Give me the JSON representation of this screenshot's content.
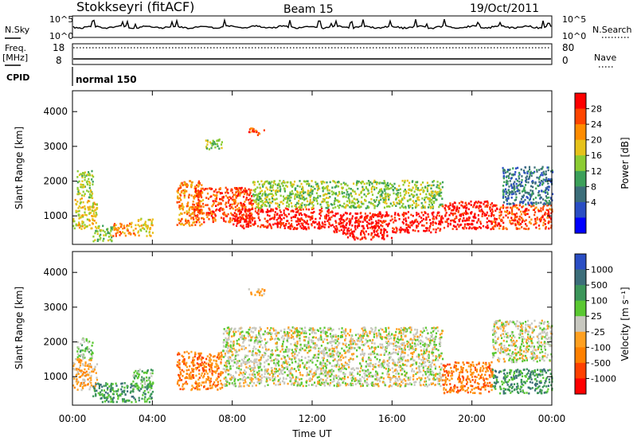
{
  "header": {
    "station": "Stokkseyri (fitACF)",
    "beam": "Beam 15",
    "date": "19/Oct/2011"
  },
  "ops_panels": {
    "nsky_label": "N.Sky",
    "nsearch_label": "N.Search",
    "nsky_ticks": [
      "10^5",
      "10^0"
    ],
    "nsearch_ticks": [
      "10^5",
      "10^0"
    ],
    "freq_label": "Freq.",
    "freq_unit": "[MHz]",
    "freq_ticks": [
      "18",
      "8"
    ],
    "nave_label": "Nave",
    "nave_ticks": [
      "80",
      "0"
    ],
    "cpid_label": "CPID",
    "cpid_value": "normal 150"
  },
  "chart_data": [
    {
      "type": "heatmap",
      "name": "power",
      "ylabel": "Slant Range [km]",
      "xlabel": "Time UT",
      "ylim": [
        180,
        4600
      ],
      "y_ticks": [
        1000,
        2000,
        3000,
        4000
      ],
      "x_ticks": [
        "00:00",
        "04:00",
        "08:00",
        "12:00",
        "16:00",
        "20:00",
        "00:00"
      ],
      "colorbar": {
        "label": "Power [dB]",
        "labels": [
          "28",
          "24",
          "20",
          "16",
          "12",
          "8",
          "4"
        ],
        "colors": [
          "#ff0000",
          "#ff4500",
          "#ff8c00",
          "#e6c21a",
          "#8ccc33",
          "#3ca05a",
          "#3c6e7a",
          "#2a4ec4",
          "#0000ff"
        ]
      },
      "bands": [
        {
          "t0": 0.0,
          "t1": 1.2,
          "r0": 600,
          "r1": 1500,
          "level": 3
        },
        {
          "t0": 0.2,
          "t1": 1.0,
          "r0": 1500,
          "r1": 2300,
          "level": 4
        },
        {
          "t0": 1.0,
          "t1": 2.0,
          "r0": 250,
          "r1": 700,
          "level": 4
        },
        {
          "t0": 2.0,
          "t1": 3.2,
          "r0": 400,
          "r1": 800,
          "level": 2
        },
        {
          "t0": 3.2,
          "t1": 4.0,
          "r0": 400,
          "r1": 900,
          "level": 3
        },
        {
          "t0": 5.2,
          "t1": 6.5,
          "r0": 700,
          "r1": 2000,
          "level": 2
        },
        {
          "t0": 6.0,
          "t1": 9.0,
          "r0": 800,
          "r1": 1800,
          "level": 1
        },
        {
          "t0": 8.0,
          "t1": 13.0,
          "r0": 600,
          "r1": 1200,
          "level": 0
        },
        {
          "t0": 9.0,
          "t1": 18.5,
          "r0": 1200,
          "r1": 2000,
          "level": 4
        },
        {
          "t0": 13.0,
          "t1": 18.5,
          "r0": 500,
          "r1": 1100,
          "level": 0
        },
        {
          "t0": 13.5,
          "t1": 16.0,
          "r0": 300,
          "r1": 500,
          "level": 0
        },
        {
          "t0": 18.5,
          "t1": 21.0,
          "r0": 600,
          "r1": 1400,
          "level": 0
        },
        {
          "t0": 21.0,
          "t1": 24.0,
          "r0": 600,
          "r1": 1300,
          "level": 1
        },
        {
          "t0": 21.5,
          "t1": 24.0,
          "r0": 1300,
          "r1": 2400,
          "level": 6
        },
        {
          "t0": 6.5,
          "t1": 7.5,
          "r0": 2900,
          "r1": 3200,
          "level": 4
        },
        {
          "t0": 8.8,
          "t1": 9.6,
          "r0": 3300,
          "r1": 3500,
          "level": 1
        }
      ]
    },
    {
      "type": "heatmap",
      "name": "velocity",
      "ylabel": "Slant Range [km]",
      "xlabel": "Time UT",
      "ylim": [
        180,
        4600
      ],
      "y_ticks": [
        1000,
        2000,
        3000,
        4000
      ],
      "x_ticks": [
        "00:00",
        "04:00",
        "08:00",
        "12:00",
        "16:00",
        "20:00",
        "00:00"
      ],
      "colorbar": {
        "label": "Velocity [m s⁻¹]",
        "labels": [
          "1000",
          "500",
          "100",
          "25",
          "-25",
          "-100",
          "-500",
          "-1000"
        ],
        "colors": [
          "#2a4ec4",
          "#3c6e7a",
          "#3c965a",
          "#5ac832",
          "#c8c8c0",
          "#ffa020",
          "#ff8000",
          "#ff4000",
          "#ff0000"
        ]
      },
      "bands": [
        {
          "t0": 0.0,
          "t1": 1.2,
          "r0": 600,
          "r1": 1500,
          "level": 5
        },
        {
          "t0": 0.2,
          "t1": 1.0,
          "r0": 1500,
          "r1": 2100,
          "level": 3
        },
        {
          "t0": 1.0,
          "t1": 4.0,
          "r0": 250,
          "r1": 800,
          "level": 2
        },
        {
          "t0": 3.0,
          "t1": 4.0,
          "r0": 600,
          "r1": 1200,
          "level": 3
        },
        {
          "t0": 5.2,
          "t1": 7.5,
          "r0": 600,
          "r1": 1700,
          "level": 6
        },
        {
          "t0": 7.5,
          "t1": 18.5,
          "r0": 700,
          "r1": 2400,
          "level": 4
        },
        {
          "t0": 18.5,
          "t1": 21.0,
          "r0": 500,
          "r1": 1400,
          "level": 6
        },
        {
          "t0": 21.0,
          "t1": 24.0,
          "r0": 500,
          "r1": 1200,
          "level": 2
        },
        {
          "t0": 21.0,
          "t1": 24.0,
          "r0": 1400,
          "r1": 2600,
          "level": 4
        },
        {
          "t0": 8.8,
          "t1": 9.6,
          "r0": 3300,
          "r1": 3500,
          "level": 5
        }
      ]
    }
  ]
}
